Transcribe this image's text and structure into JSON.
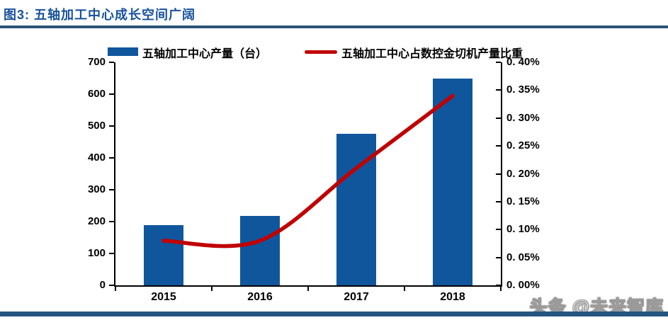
{
  "header": {
    "title": "图3: 五轴加工中心成长空间广阔"
  },
  "legend": [
    {
      "type": "bar",
      "label": "五轴加工中心产量（台）",
      "color": "#10569D"
    },
    {
      "type": "line",
      "label": "五轴加工中心占数控金切机产量比重",
      "color": "#C00000"
    }
  ],
  "watermark": {
    "text": "头条 @未来智库"
  },
  "colors": {
    "title_blue": "#17519C",
    "rule_blue": "#2B5377",
    "bottom_bar_blue": "#24567F",
    "bar_blue": "#10569D",
    "line_red": "#C00000",
    "axis_black": "#000000"
  },
  "chart_data": {
    "type": "bar",
    "subtype": "bar+line dual axis",
    "categories": [
      "2015",
      "2016",
      "2017",
      "2018"
    ],
    "series": [
      {
        "name": "五轴加工中心产量（台）",
        "type": "bar",
        "axis": "left",
        "values": [
          190,
          218,
          475,
          650
        ],
        "color": "#10569D"
      },
      {
        "name": "五轴加工中心占数控金切机产量比重",
        "type": "line",
        "axis": "right",
        "values_percent": [
          0.08,
          0.08,
          0.21,
          0.34
        ],
        "color": "#C00000"
      }
    ],
    "left_axis": {
      "ticks": [
        "0",
        "100",
        "200",
        "300",
        "400",
        "500",
        "600",
        "700"
      ],
      "range": [
        0,
        700
      ]
    },
    "right_axis": {
      "ticks": [
        "0. 00%",
        "0. 05%",
        "0. 10%",
        "0. 15%",
        "0. 20%",
        "0. 25%",
        "0. 30%",
        "0. 35%",
        "0. 40%"
      ],
      "range": [
        0,
        0.4
      ]
    },
    "grid": false,
    "legend_position": "top",
    "title": "图3: 五轴加工中心成长空间广阔"
  }
}
